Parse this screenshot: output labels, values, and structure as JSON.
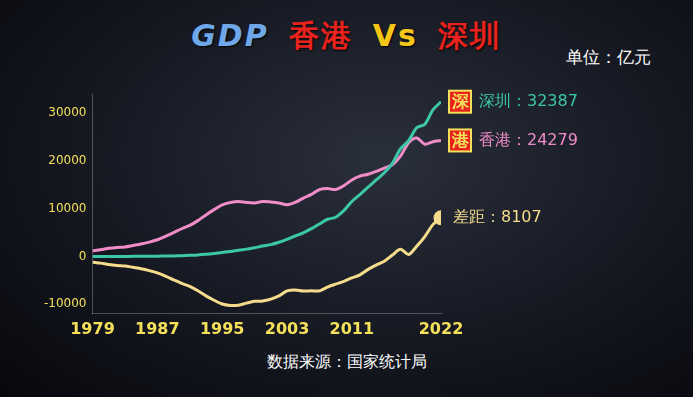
{
  "chart_data": {
    "type": "line",
    "title": "GDP 香港 Vs 深圳",
    "annotations": [
      {
        "text": "单位：亿元"
      },
      {
        "text": "数据来源：国家统计局"
      }
    ],
    "x": [
      1979,
      1980,
      1981,
      1982,
      1983,
      1984,
      1985,
      1986,
      1987,
      1988,
      1989,
      1990,
      1991,
      1992,
      1993,
      1994,
      1995,
      1996,
      1997,
      1998,
      1999,
      2000,
      2001,
      2002,
      2003,
      2004,
      2005,
      2006,
      2007,
      2008,
      2009,
      2010,
      2011,
      2012,
      2013,
      2014,
      2015,
      2016,
      2017,
      2018,
      2019,
      2020,
      2021,
      2022
    ],
    "xlim": [
      1979,
      2022
    ],
    "xticks": [
      1979,
      1987,
      1995,
      2003,
      2011,
      2022
    ],
    "ylim": [
      -12000,
      34000
    ],
    "yticks": [
      -10000,
      0,
      10000,
      20000,
      30000
    ],
    "grid": false,
    "series": [
      {
        "name": "深圳",
        "color": "#3cc8a8",
        "badge": "深",
        "end_label": "深圳：32387",
        "values": [
          2,
          3,
          5,
          8,
          13,
          23,
          39,
          42,
          56,
          87,
          116,
          172,
          237,
          317,
          453,
          635,
          843,
          1048,
          1297,
          1535,
          1804,
          2187,
          2482,
          2970,
          3586,
          4282,
          4951,
          5814,
          6802,
          7787,
          8201,
          9582,
          11502,
          12950,
          14500,
          16002,
          17503,
          19493,
          22490,
          24222,
          26927,
          27670,
          30665,
          32387
        ]
      },
      {
        "name": "香港",
        "color": "#f08cc8",
        "badge": "港",
        "end_label": "香港：24279",
        "values": [
          1200,
          1400,
          1700,
          1900,
          2000,
          2300,
          2600,
          3000,
          3500,
          4200,
          5000,
          5800,
          6500,
          7500,
          8700,
          9800,
          10800,
          11300,
          11500,
          11300,
          11200,
          11500,
          11400,
          11200,
          10800,
          11300,
          12200,
          13000,
          14000,
          14200,
          14000,
          14800,
          16000,
          16800,
          17200,
          17800,
          18500,
          19200,
          21000,
          23800,
          24800,
          23500,
          24000,
          24279
        ]
      },
      {
        "name": "差距",
        "color": "#f5dc8c",
        "marker": "circle",
        "end_label": "差距：8107",
        "values": [
          -1198,
          -1397,
          -1695,
          -1892,
          -1987,
          -2277,
          -2561,
          -2958,
          -3444,
          -4113,
          -4884,
          -5628,
          -6263,
          -7183,
          -8247,
          -9165,
          -9957,
          -10252,
          -10203,
          -9765,
          -9396,
          -9313,
          -8918,
          -8230,
          -7214,
          -7018,
          -7249,
          -7186,
          -7198,
          -6413,
          -5799,
          -5218,
          -4498,
          -3850,
          -2700,
          -1798,
          -997,
          293,
          1490,
          422,
          2127,
          4170,
          6665,
          8107
        ]
      }
    ]
  }
}
